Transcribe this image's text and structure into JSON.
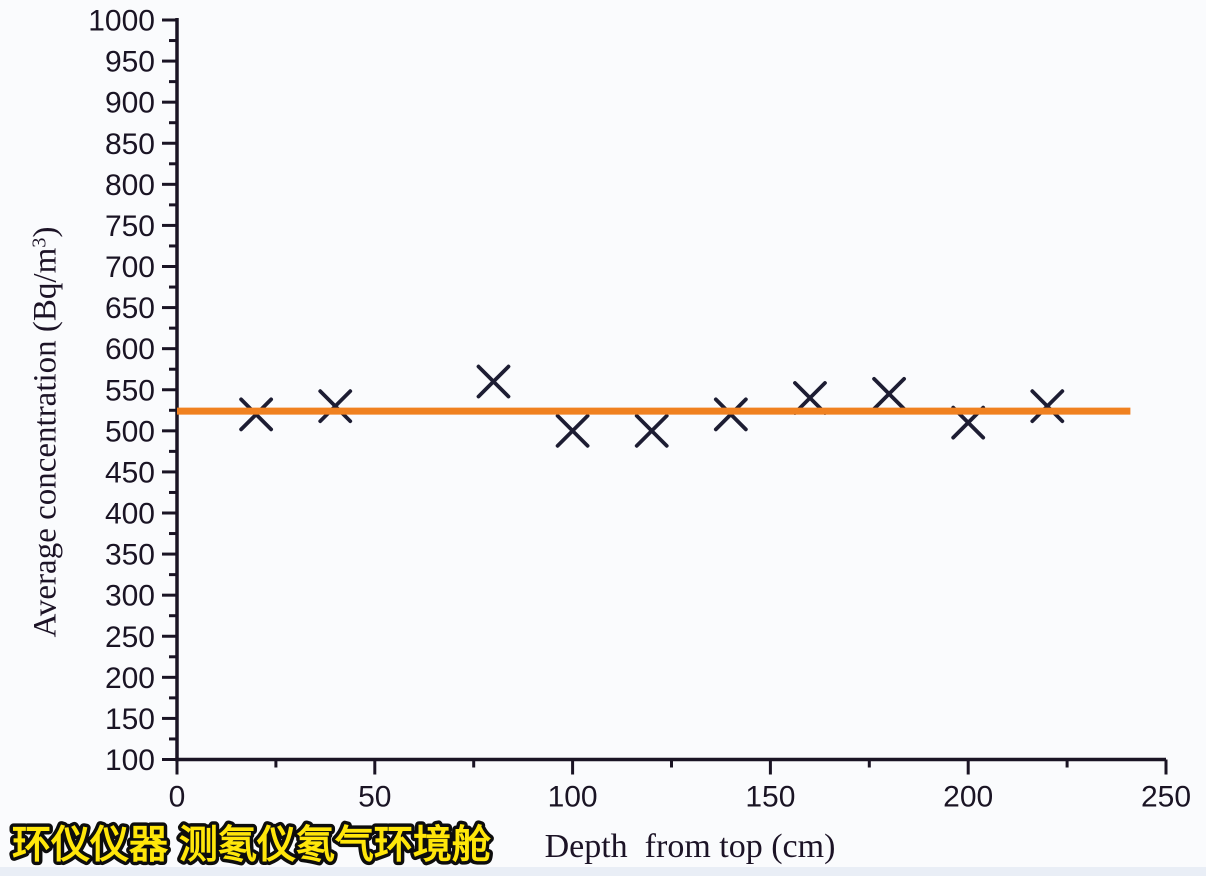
{
  "figure": {
    "background": "#fafbfd",
    "watermark": {
      "text": "环仪仪器 测氡仪氡气环境舱",
      "fill": "#ffe60a",
      "outline": "#0d0d0d"
    }
  },
  "chart_data": {
    "type": "scatter",
    "title": "",
    "xlabel": "Depth  from top (cm)",
    "ylabel": {
      "prefix": "Average concentration (Bq/m",
      "sup": "3",
      "suffix": ")"
    },
    "xlim": [
      0,
      250
    ],
    "ylim": [
      100,
      1000
    ],
    "x_ticks": [
      0,
      50,
      100,
      150,
      200,
      250
    ],
    "y_ticks": [
      100,
      150,
      200,
      250,
      300,
      350,
      400,
      450,
      500,
      550,
      600,
      650,
      700,
      750,
      800,
      850,
      900,
      950,
      1000
    ],
    "x_minor_step": 25,
    "y_minor_step": 25,
    "grid": false,
    "legend": null,
    "marker": "x",
    "marker_color": "#1d1d33",
    "axis_color": "#1a1424",
    "points": [
      {
        "x": 20,
        "y": 520
      },
      {
        "x": 40,
        "y": 530
      },
      {
        "x": 80,
        "y": 560
      },
      {
        "x": 100,
        "y": 500
      },
      {
        "x": 120,
        "y": 500
      },
      {
        "x": 140,
        "y": 520
      },
      {
        "x": 160,
        "y": 540
      },
      {
        "x": 180,
        "y": 545
      },
      {
        "x": 200,
        "y": 510
      },
      {
        "x": 220,
        "y": 530
      }
    ],
    "fit_line": {
      "y": 524,
      "x_start": 0,
      "x_end": 241,
      "color": "#f08120",
      "width": 7
    }
  }
}
